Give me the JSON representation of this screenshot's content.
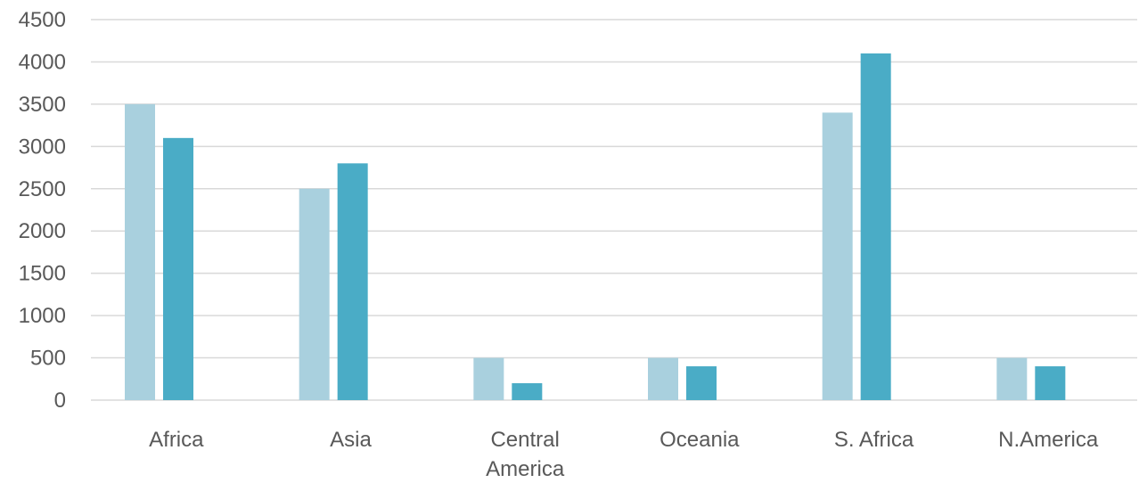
{
  "chart_data": {
    "type": "bar",
    "categories": [
      [
        "Africa"
      ],
      [
        "Asia"
      ],
      [
        "Central",
        "America"
      ],
      [
        "Oceania"
      ],
      [
        "S. Africa"
      ],
      [
        "N.America"
      ]
    ],
    "series": [
      {
        "values": [
          3500,
          2500,
          500,
          500,
          3400,
          500
        ],
        "color": "#a9d0de"
      },
      {
        "values": [
          3100,
          2800,
          200,
          400,
          4100,
          400
        ],
        "color": "#4aacc6"
      }
    ],
    "ylim": [
      0,
      4500
    ],
    "yticks": [
      0,
      500,
      1000,
      1500,
      2000,
      2500,
      3000,
      3500,
      4000,
      4500
    ],
    "grid": true,
    "legend": "none",
    "title": "",
    "xlabel": "",
    "ylabel": ""
  }
}
